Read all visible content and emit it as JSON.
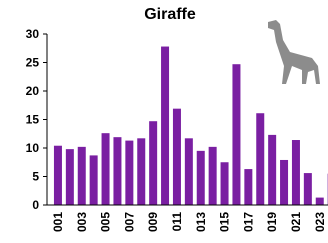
{
  "chart_data": {
    "type": "bar",
    "title": "Giraffe",
    "categories": [
      "001",
      null,
      "003",
      null,
      "005",
      null,
      "007",
      null,
      "009",
      null,
      "011",
      null,
      "013",
      null,
      "015",
      null,
      "017",
      null,
      "019",
      null,
      "021",
      null,
      "023",
      null
    ],
    "values": [
      10.4,
      9.8,
      10.2,
      8.7,
      12.6,
      11.9,
      11.3,
      11.7,
      14.7,
      27.8,
      16.9,
      11.7,
      9.5,
      10.2,
      7.5,
      24.7,
      6.3,
      16.1,
      12.3,
      7.9,
      11.4,
      5.6,
      1.3,
      5.5
    ],
    "color": "#7a1fa2",
    "ylim": [
      0,
      30
    ],
    "yticks": [
      0,
      5,
      10,
      15,
      20,
      25,
      30
    ]
  }
}
